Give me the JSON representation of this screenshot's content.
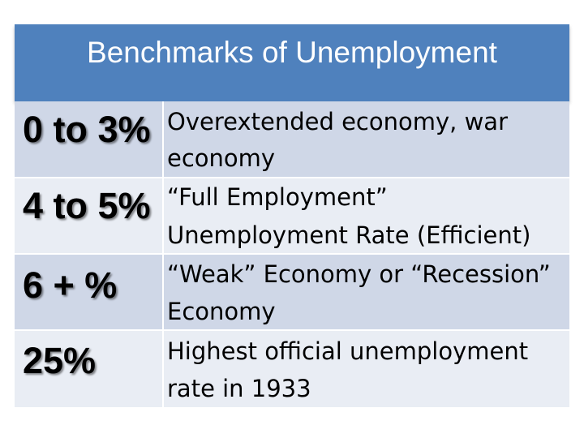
{
  "title": "Benchmarks of Unemployment",
  "rows": [
    {
      "rate": "0 to 3%",
      "description_line1": "Overextended economy, war",
      "description_line2": "economy"
    },
    {
      "rate": "4 to 5%",
      "description_line1": "“Full Employment”",
      "description_line2": "Unemployment Rate (Efficient)"
    },
    {
      "rate": "6 + %",
      "description_line1": "“Weak” Economy or “Recession”",
      "description_line2": "Economy"
    },
    {
      "rate": "25%",
      "description_line1": "Highest official unemployment",
      "description_line2": "rate in 1933"
    }
  ],
  "colors": {
    "header": "#4f81bd",
    "row_dark": "#cfd7e7",
    "row_light": "#e9edf4"
  }
}
